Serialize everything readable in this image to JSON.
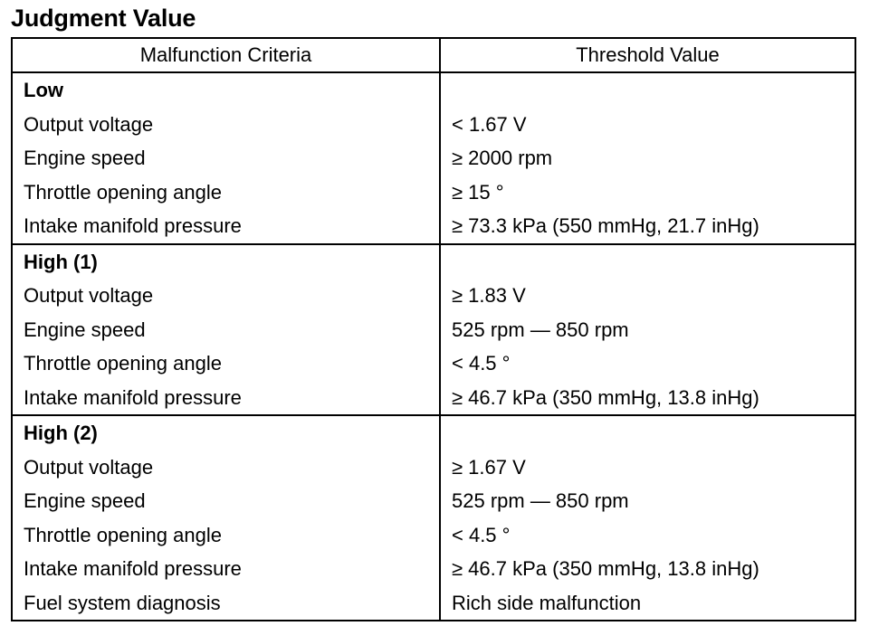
{
  "title": "Judgment Value",
  "headers": [
    "Malfunction Criteria",
    "Threshold Value"
  ],
  "groups": [
    {
      "name": "Low",
      "rows": [
        [
          "Output voltage",
          "< 1.67 V"
        ],
        [
          "Engine speed",
          "≥ 2000 rpm"
        ],
        [
          "Throttle opening angle",
          "≥ 15 °"
        ],
        [
          "Intake manifold pressure",
          "≥ 73.3 kPa (550 mmHg, 21.7 inHg)"
        ]
      ]
    },
    {
      "name": "High (1)",
      "rows": [
        [
          "Output voltage",
          "≥ 1.83 V"
        ],
        [
          "Engine speed",
          "525 rpm — 850 rpm"
        ],
        [
          "Throttle opening angle",
          "< 4.5 °"
        ],
        [
          "Intake manifold pressure",
          "≥ 46.7 kPa (350 mmHg, 13.8 inHg)"
        ]
      ]
    },
    {
      "name": "High (2)",
      "rows": [
        [
          "Output voltage",
          "≥ 1.67 V"
        ],
        [
          "Engine speed",
          "525 rpm — 850 rpm"
        ],
        [
          "Throttle opening angle",
          "< 4.5 °"
        ],
        [
          "Intake manifold pressure",
          "≥ 46.7 kPa (350 mmHg, 13.8 inHg)"
        ],
        [
          "Fuel system diagnosis",
          "Rich side malfunction"
        ]
      ]
    }
  ]
}
